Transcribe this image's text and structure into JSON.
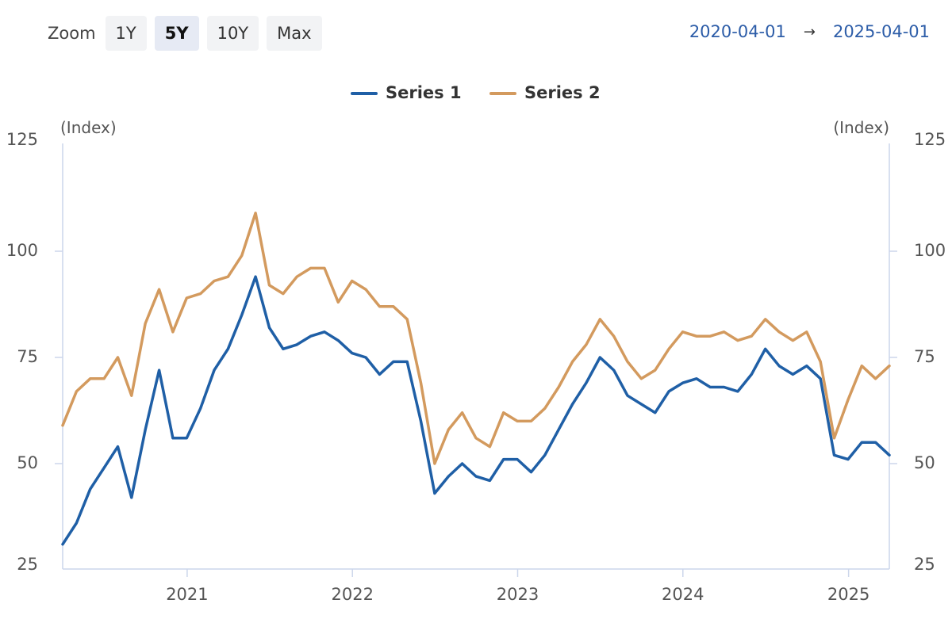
{
  "toolbar": {
    "zoom_label": "Zoom",
    "buttons": [
      "1Y",
      "5Y",
      "10Y",
      "Max"
    ],
    "active": "5Y",
    "date_from": "2020-04-01",
    "date_to": "2025-04-01",
    "arrow": "→"
  },
  "chart_data": {
    "type": "line",
    "x_start": "2020-04-01",
    "x_end": "2025-04-01",
    "x_tick_labels": [
      "2021",
      "2022",
      "2023",
      "2024",
      "2025"
    ],
    "left_unit": "(Index)",
    "right_unit": "(Index)",
    "ylim": [
      25,
      125
    ],
    "y_ticks": [
      25,
      50,
      75,
      100,
      125
    ],
    "grid": false,
    "legend_position": "top-center",
    "series": [
      {
        "name": "Series 1",
        "color": "#1f5fa6",
        "values": [
          31,
          36,
          44,
          49,
          54,
          42,
          58,
          72,
          56,
          56,
          63,
          72,
          77,
          85,
          94,
          82,
          77,
          78,
          80,
          81,
          79,
          76,
          75,
          71,
          74,
          74,
          60,
          43,
          47,
          50,
          47,
          46,
          51,
          51,
          48,
          52,
          58,
          64,
          69,
          75,
          72,
          66,
          64,
          62,
          67,
          69,
          70,
          68,
          68,
          67,
          71,
          77,
          73,
          71,
          73,
          70,
          52,
          51,
          55,
          55,
          52
        ]
      },
      {
        "name": "Series 2",
        "color": "#d39a5e",
        "values": [
          59,
          67,
          70,
          70,
          75,
          66,
          83,
          91,
          81,
          89,
          90,
          93,
          94,
          99,
          109,
          92,
          90,
          94,
          96,
          96,
          88,
          93,
          91,
          87,
          87,
          84,
          69,
          50,
          58,
          62,
          56,
          54,
          62,
          60,
          60,
          63,
          68,
          74,
          78,
          84,
          80,
          74,
          70,
          72,
          77,
          81,
          80,
          80,
          81,
          79,
          80,
          84,
          81,
          79,
          81,
          74,
          56,
          65,
          73,
          70,
          73
        ]
      }
    ]
  }
}
